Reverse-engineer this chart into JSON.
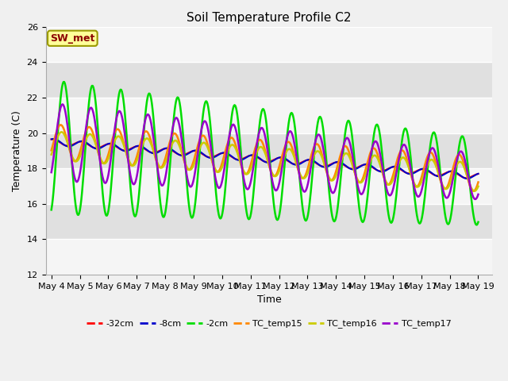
{
  "title": "Soil Temperature Profile C2",
  "xlabel": "Time",
  "ylabel": "Temperature (C)",
  "ylim": [
    12,
    26
  ],
  "sw_met_label": "SW_met",
  "legend_labels": [
    "-32cm",
    "-8cm",
    "-2cm",
    "TC_temp15",
    "TC_temp16",
    "TC_temp17"
  ],
  "legend_colors": [
    "#ff0000",
    "#0000cc",
    "#00dd00",
    "#ff8800",
    "#cccc00",
    "#9900cc"
  ],
  "days": 15.0,
  "n_points": 600,
  "band_colors": [
    "#ffffff",
    "#e0e0e0"
  ],
  "fig_bg": "#f0f0f0"
}
